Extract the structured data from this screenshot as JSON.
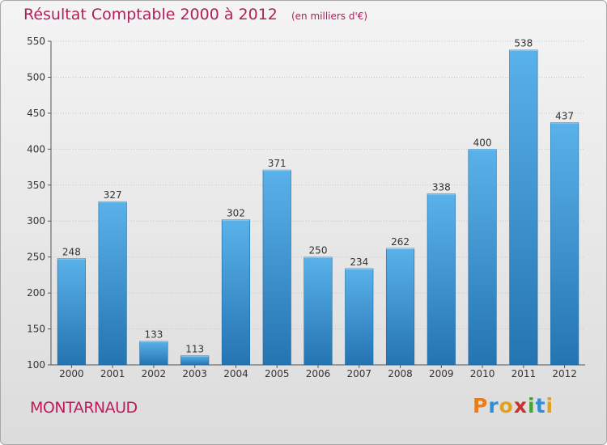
{
  "header": {
    "title": "Résultat Comptable 2000 à 2012",
    "unit": "(en milliers d'€)"
  },
  "footer": {
    "place": "MONTARNAUD",
    "logo_text": [
      "P",
      "r",
      "o",
      "x",
      "i",
      "t",
      "i"
    ],
    "logo_colors": [
      "#e87c1e",
      "#2f8fd6",
      "#e0a21c",
      "#c8322c",
      "#4aa33a",
      "#2f8fd6",
      "#e0a21c"
    ]
  },
  "colors": {
    "bar_top": "#5ab2ea",
    "bar_bottom": "#2474b2",
    "title": "#b0205a",
    "grid": "#c8c8c8"
  },
  "chart_data": {
    "type": "bar",
    "title": "Résultat Comptable 2000 à 2012",
    "subtitle": "(en milliers d'€)",
    "categories": [
      "2000",
      "2001",
      "2002",
      "2003",
      "2004",
      "2005",
      "2006",
      "2007",
      "2008",
      "2009",
      "2010",
      "2011",
      "2012"
    ],
    "values": [
      248,
      327,
      133,
      113,
      302,
      371,
      250,
      234,
      262,
      338,
      400,
      538,
      437
    ],
    "ylim": [
      100,
      550
    ],
    "yticks": [
      100,
      150,
      200,
      250,
      300,
      350,
      400,
      450,
      500,
      550
    ],
    "grid": true,
    "data_labels": true
  }
}
